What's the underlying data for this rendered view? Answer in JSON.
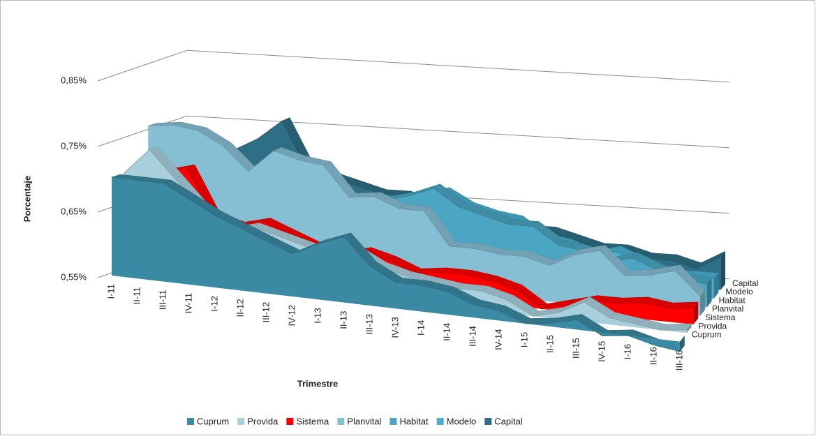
{
  "chart_data": {
    "type": "area",
    "y_label": "Porcentaje",
    "x_label": "Trimestre",
    "categories": [
      "I-11",
      "II-11",
      "III-11",
      "IV-11",
      "I-12",
      "II-12",
      "III-12",
      "IV-12",
      "I-13",
      "II-13",
      "III-13",
      "IV-13",
      "I-14",
      "II-14",
      "III-14",
      "IV-14",
      "I-15",
      "II-15",
      "III-15",
      "IV-15",
      "I-16",
      "II-16",
      "III-16"
    ],
    "ylim": [
      0.55,
      0.85
    ],
    "yticks": [
      {
        "value": 0.55,
        "label": "0,55%"
      },
      {
        "value": 0.65,
        "label": "0,65%"
      },
      {
        "value": 0.75,
        "label": "0,75%"
      },
      {
        "value": 0.85,
        "label": "0,85%"
      }
    ],
    "grid": true,
    "legend": "bottom",
    "series": [
      {
        "name": "Cuprum",
        "color": "#3b8aa3",
        "values": [
          0.7,
          0.7,
          0.7,
          0.68,
          0.66,
          0.645,
          0.63,
          0.615,
          0.635,
          0.65,
          0.61,
          0.59,
          0.59,
          0.585,
          0.57,
          0.565,
          0.55,
          0.555,
          0.565,
          0.545,
          0.55,
          0.54,
          0.535
        ]
      },
      {
        "name": "Provida",
        "color": "#a9cfdc",
        "values": [
          0.7,
          0.74,
          0.7,
          0.66,
          0.63,
          0.64,
          0.63,
          0.62,
          0.61,
          0.62,
          0.6,
          0.59,
          0.585,
          0.58,
          0.58,
          0.57,
          0.55,
          0.56,
          0.58,
          0.56,
          0.555,
          0.55,
          0.555
        ]
      },
      {
        "name": "Sistema",
        "color": "#ff0000",
        "values": [
          0.69,
          0.7,
          0.71,
          0.64,
          0.63,
          0.64,
          0.625,
          0.61,
          0.6,
          0.61,
          0.6,
          0.585,
          0.59,
          0.59,
          0.585,
          0.575,
          0.55,
          0.56,
          0.57,
          0.57,
          0.575,
          0.57,
          0.575
        ]
      },
      {
        "name": "Planvital",
        "color": "#86bfd3",
        "values": [
          0.76,
          0.765,
          0.76,
          0.74,
          0.705,
          0.74,
          0.73,
          0.725,
          0.68,
          0.685,
          0.67,
          0.67,
          0.62,
          0.62,
          0.615,
          0.615,
          0.605,
          0.625,
          0.635,
          0.6,
          0.605,
          0.615,
          0.58
        ]
      },
      {
        "name": "Habitat",
        "color": "#4aa6c2",
        "values": [
          0.7,
          0.7,
          0.7,
          0.69,
          0.68,
          0.67,
          0.67,
          0.67,
          0.67,
          0.67,
          0.68,
          0.695,
          0.67,
          0.66,
          0.65,
          0.65,
          0.625,
          0.62,
          0.605,
          0.615,
          0.6,
          0.59,
          0.585
        ]
      },
      {
        "name": "Modelo",
        "color": "#4ab0cf",
        "values": [
          0.67,
          0.67,
          0.67,
          0.67,
          0.67,
          0.66,
          0.66,
          0.66,
          0.66,
          0.66,
          0.67,
          0.68,
          0.66,
          0.65,
          0.645,
          0.62,
          0.615,
          0.6,
          0.61,
          0.595,
          0.58,
          0.58,
          0.58
        ]
      },
      {
        "name": "Capital",
        "color": "#2f6f86",
        "values": [
          0.7,
          0.7,
          0.71,
          0.73,
          0.76,
          0.69,
          0.68,
          0.67,
          0.66,
          0.66,
          0.65,
          0.65,
          0.64,
          0.63,
          0.62,
          0.62,
          0.61,
          0.6,
          0.6,
          0.59,
          0.59,
          0.58,
          0.6
        ]
      }
    ]
  }
}
